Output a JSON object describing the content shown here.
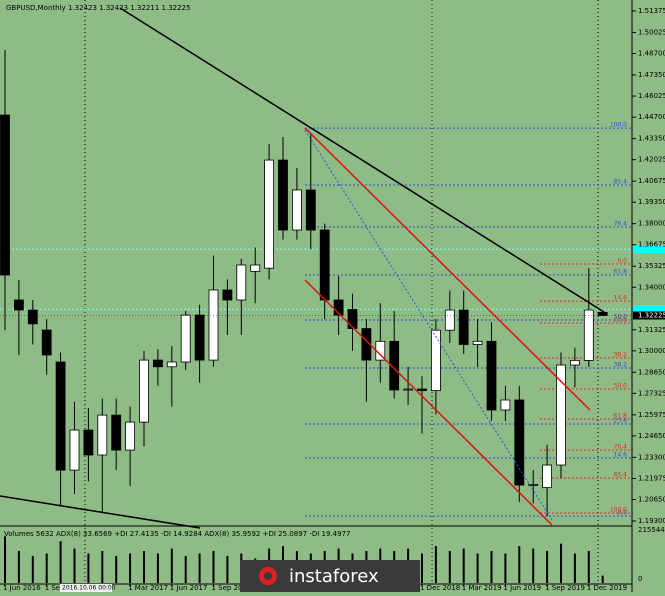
{
  "chart_data": {
    "type": "candlestick",
    "title": "GBPUSD,Monthly",
    "quote": "1.32423 1.32423 1.32211 1.32225",
    "categories": [
      "1 Jun 2016",
      null,
      null,
      "1 Sep 2016",
      null,
      null,
      null,
      null,
      null,
      "1 Mar 2017",
      null,
      null,
      "1 Jun 2017",
      null,
      null,
      "1 Sep 2017",
      null,
      null,
      null,
      null,
      null,
      null,
      null,
      null,
      null,
      null,
      null,
      null,
      null,
      null,
      "1 Dec 2018",
      null,
      null,
      "1 Mar 2019",
      null,
      null,
      "1 Jun 2019",
      null,
      null,
      "1 Sep 2019",
      null,
      null,
      "1 Dec 2019",
      null
    ],
    "open": [
      1.4483,
      1.332,
      1.3257,
      1.3131,
      1.293,
      1.225,
      1.2502,
      1.2345,
      1.2596,
      1.2376,
      1.2552,
      1.2942,
      1.29,
      1.293,
      1.3225,
      1.2942,
      1.3383,
      1.332,
      1.35,
      1.352,
      1.42,
      1.376,
      1.4012,
      1.376,
      1.332,
      1.326,
      1.314,
      1.2942,
      1.306,
      1.2754,
      1.276,
      1.275,
      1.313,
      1.3257,
      1.304,
      1.306,
      1.2628,
      1.2691,
      1.2156,
      1.214,
      1.2282,
      1.2911,
      1.294,
      1.32423
    ],
    "high": [
      1.4892,
      1.3446,
      1.332,
      1.32,
      1.299,
      1.268,
      1.264,
      1.27,
      1.27,
      1.265,
      1.3,
      1.301,
      1.303,
      1.325,
      1.329,
      1.36,
      1.345,
      1.358,
      1.365,
      1.43,
      1.4345,
      1.415,
      1.437,
      1.38,
      1.347,
      1.336,
      1.32,
      1.33,
      1.325,
      1.29,
      1.284,
      1.32,
      1.338,
      1.338,
      1.32,
      1.318,
      1.278,
      1.278,
      1.225,
      1.241,
      1.299,
      1.302,
      1.3521,
      1.32423
    ],
    "low": [
      1.3131,
      1.2974,
      1.304,
      1.285,
      1.203,
      1.21,
      1.218,
      1.199,
      1.225,
      1.215,
      1.24,
      1.278,
      1.265,
      1.288,
      1.28,
      1.29,
      1.31,
      1.31,
      1.33,
      1.345,
      1.37,
      1.37,
      1.364,
      1.32,
      1.31,
      1.3,
      1.268,
      1.28,
      1.27,
      1.266,
      1.248,
      1.26,
      1.305,
      1.298,
      1.29,
      1.256,
      1.256,
      1.205,
      1.204,
      1.196,
      1.22,
      1.277,
      1.29,
      1.32211
    ],
    "close": [
      1.3477,
      1.3257,
      1.317,
      1.2974,
      1.225,
      1.2502,
      1.2345,
      1.2596,
      1.2376,
      1.2552,
      1.2942,
      1.29,
      1.293,
      1.3225,
      1.2942,
      1.3383,
      1.332,
      1.354,
      1.354,
      1.42,
      1.376,
      1.4012,
      1.376,
      1.332,
      1.3225,
      1.314,
      1.2942,
      1.306,
      1.2754,
      1.276,
      1.275,
      1.313,
      1.3257,
      1.304,
      1.306,
      1.2628,
      1.2691,
      1.2156,
      1.216,
      1.2282,
      1.2911,
      1.294,
      1.3257,
      1.32225
    ],
    "bull_color": "#ffffff",
    "bear_color": "#000000",
    "ylim": [
      1.193,
      1.51375
    ],
    "yticks": [
      1.51375,
      1.50025,
      {
        "value": 1.487,
        "label": "1.48700"
      },
      {
        "value": 1.4735,
        "label": "1.47350"
      },
      1.46025,
      {
        "value": 1.447,
        "label": "1.44700"
      },
      {
        "value": 1.4335,
        "label": "1.43350"
      },
      1.42025,
      1.40675,
      {
        "value": 1.3935,
        "label": "1.39350"
      },
      {
        "value": 1.38,
        "label": "1.38000"
      },
      1.36675,
      1.35325,
      {
        "value": 1.34,
        "label": "1.34000"
      },
      1.31325,
      {
        "value": 1.3,
        "label": "1.30000"
      },
      {
        "value": 1.2865,
        "label": "1.28650"
      },
      1.27325,
      1.25975,
      {
        "value": 1.2465,
        "label": "1.24650"
      },
      {
        "value": 1.233,
        "label": "1.23300"
      },
      1.21975,
      {
        "value": 1.2065,
        "label": "1.20650"
      },
      {
        "value": 1.193,
        "label": "1.19300"
      }
    ],
    "cyan_levels": [
      1.364,
      1.3262
    ],
    "fib_up": {
      "color": "#2f4fd8",
      "levels": [
        {
          "label": "100.0",
          "value": 1.4401
        },
        {
          "label": "85.4",
          "value": 1.4043
        },
        {
          "label": "76.4",
          "value": 1.3779
        },
        {
          "label": "61.8",
          "value": 1.3477
        },
        {
          "label": "50.0",
          "value": 1.3194
        },
        {
          "label": "38.2",
          "value": 1.2892
        },
        {
          "label": "23.6",
          "value": 1.254
        },
        {
          "label": "14.6",
          "value": 1.2326
        },
        {
          "label": "0.0",
          "value": 1.1961
        }
      ]
    },
    "fib_down": {
      "color": "#d8301e",
      "levels": [
        {
          "label": "0.0",
          "value": 1.3546
        },
        {
          "label": "14.6",
          "value": 1.3313
        },
        {
          "label": "23.6",
          "value": 1.3175
        },
        {
          "label": "38.2",
          "value": 1.2955
        },
        {
          "label": "50.0",
          "value": 1.276
        },
        {
          "label": "61.8",
          "value": 1.2571
        },
        {
          "label": "76.4",
          "value": 1.2376
        },
        {
          "label": "85.4",
          "value": 1.22
        },
        {
          "label": "100.0",
          "value": 1.198
        }
      ]
    },
    "indicator_label": "Volumes 5632  ADX(8) 33.6569 +DI 27.4135 -DI 14.9284  ADX(8) 35.9592 +DI 25.0897 -DI 19.4977",
    "volumes": [
      1900000,
      1300000,
      1100000,
      1200000,
      1700000,
      1400000,
      1200000,
      1300000,
      1100000,
      1200000,
      1300000,
      1200000,
      1400000,
      1100000,
      1200000,
      1300000,
      1100000,
      1200000,
      1000000,
      1400000,
      1500000,
      1300000,
      1200000,
      1300000,
      1400000,
      1200000,
      1300000,
      1400000,
      1300000,
      1400000,
      1200000,
      1500000,
      1300000,
      1400000,
      1200000,
      1300000,
      1200000,
      1500000,
      1400000,
      1300000,
      1600000,
      1200000,
      1300000,
      300000
    ],
    "volume_lim": [
      0,
      2155447
    ],
    "volume_ticks": [
      2155447,
      0
    ],
    "crosshair_label": "2016.10.06 00:00",
    "watermark": "instaforex"
  }
}
